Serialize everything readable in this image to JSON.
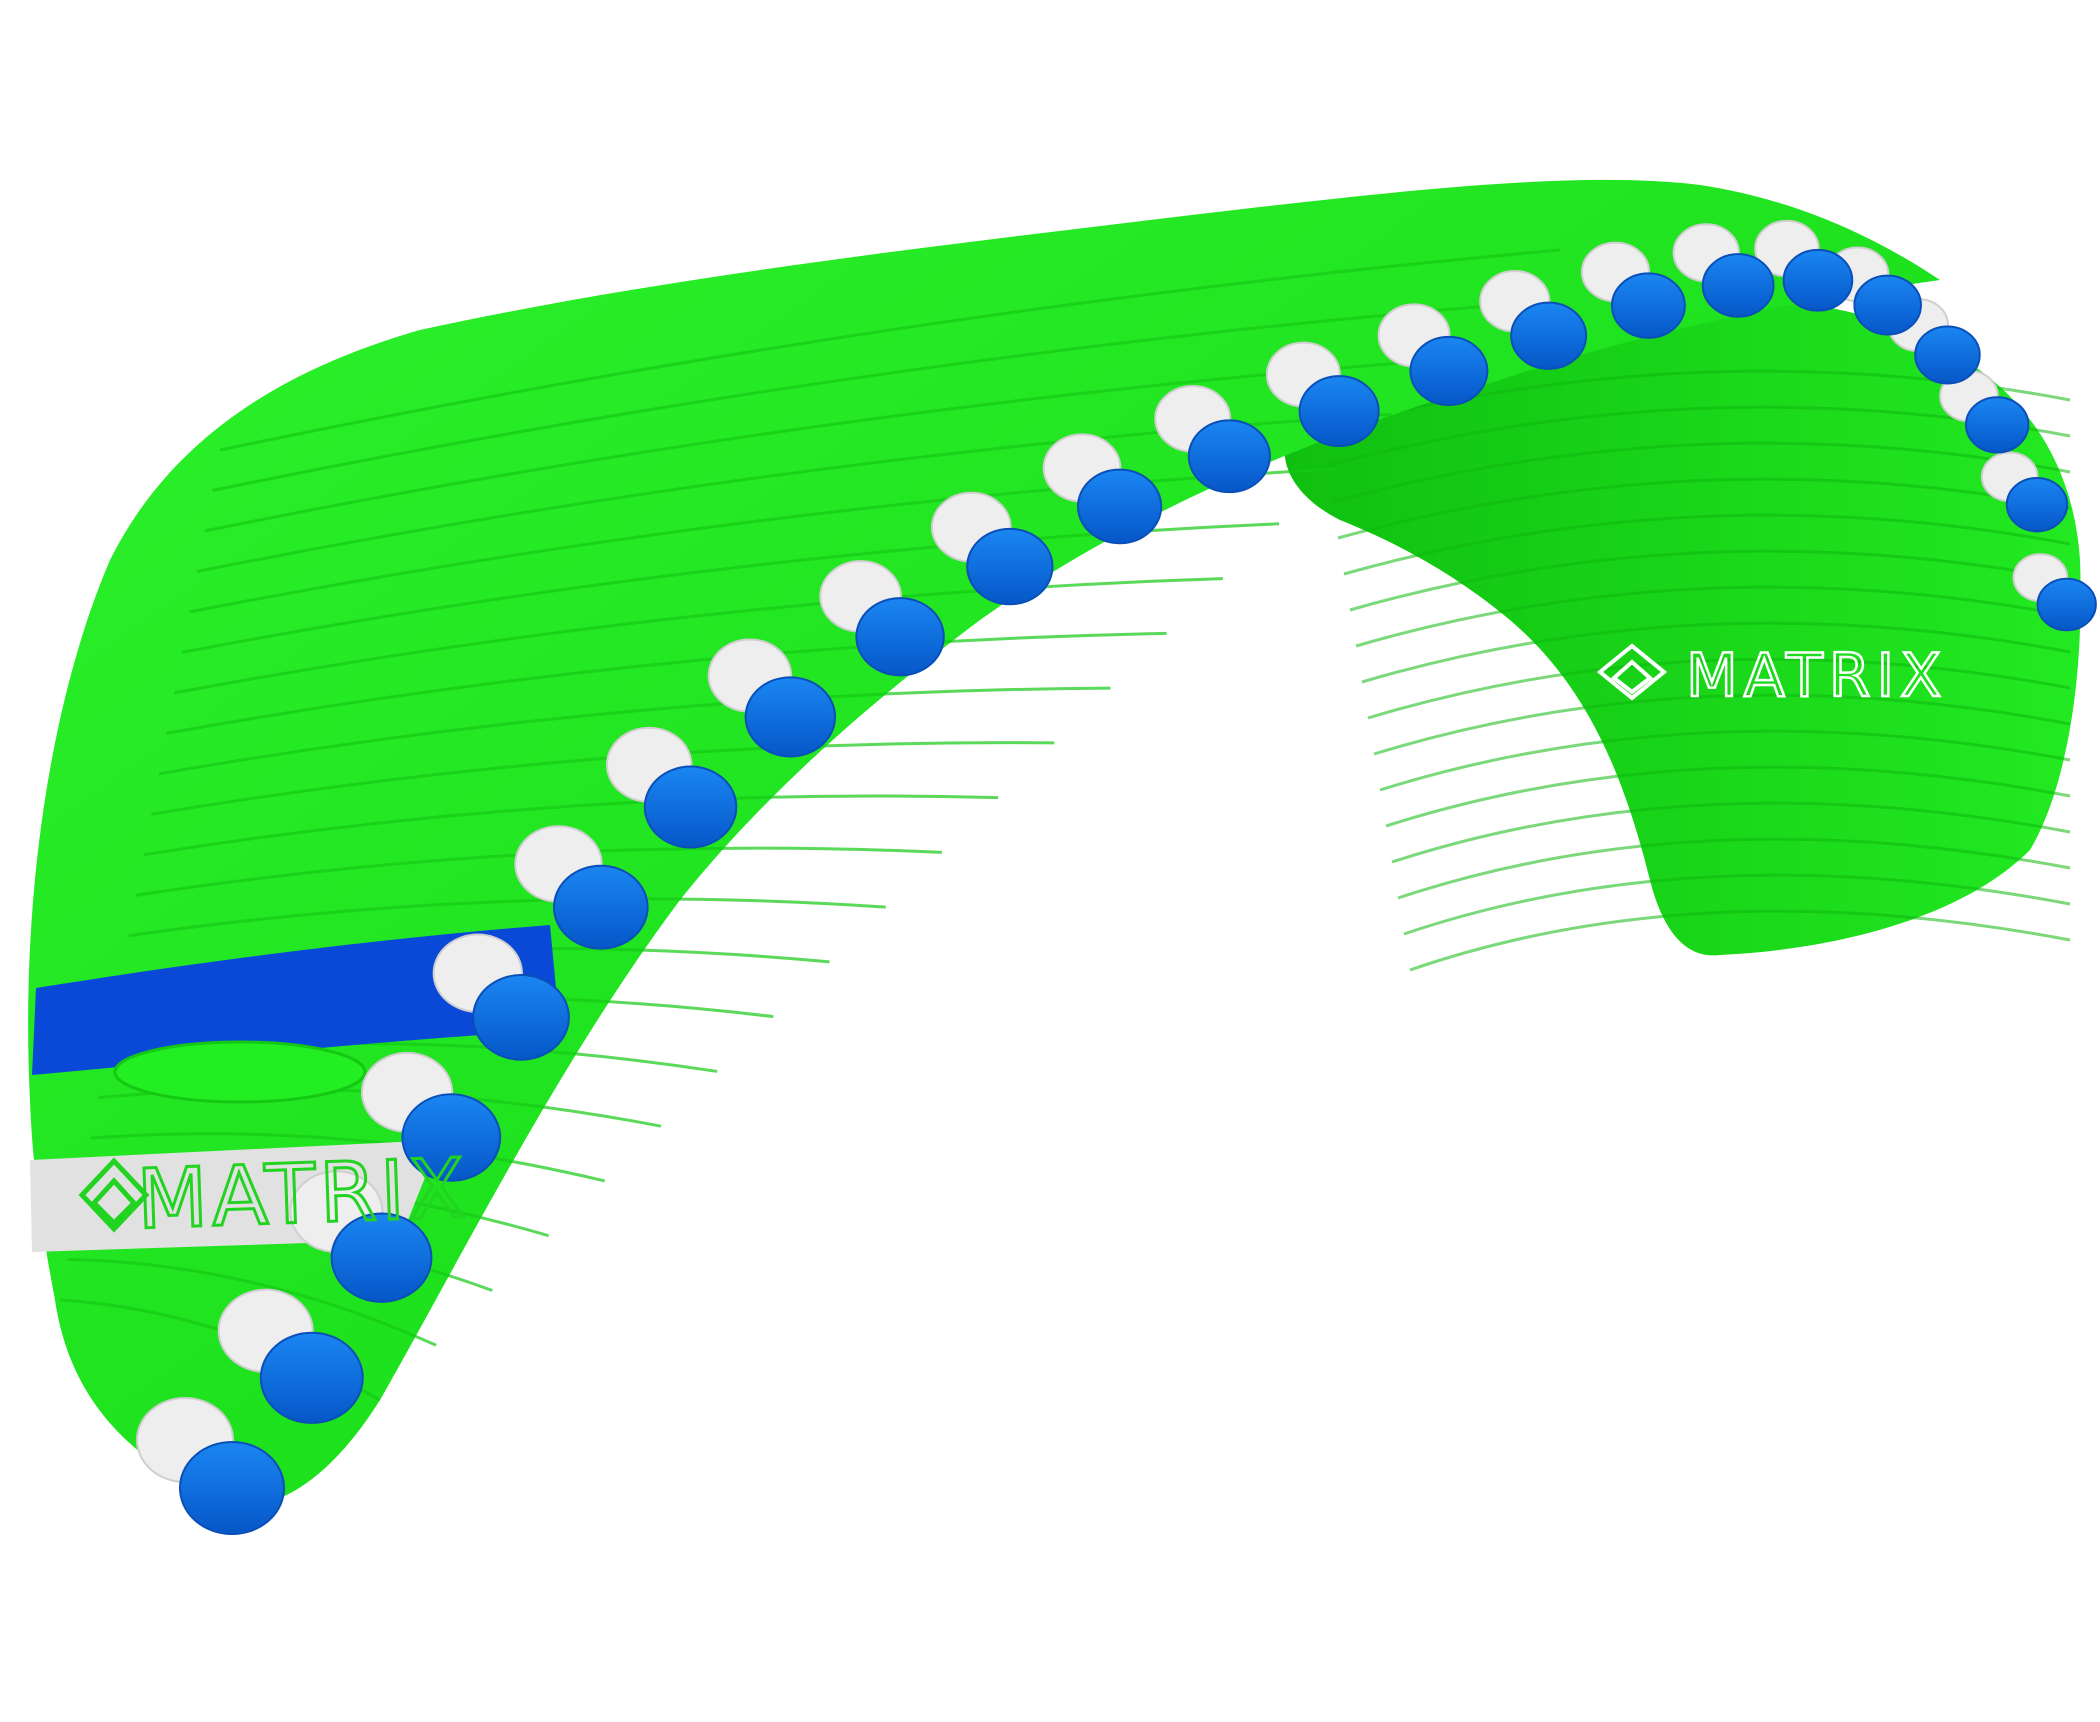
{
  "image": {
    "subject": "paraglider-wing",
    "colors": {
      "background": "#ffffff",
      "canopy_green": "#1fe81f",
      "canopy_green_dark": "#10c010",
      "leading_edge_blue": "#0a6fe6",
      "stripe_blue": "#0a49d8",
      "leading_edge_white": "#eeeeee",
      "logo_band_grey": "#e0e0e0"
    }
  },
  "logos": {
    "left_panel": {
      "text": "MATRIX",
      "icon": "diamond-logo-icon"
    },
    "right_underside": {
      "text": "MATRIX",
      "icon": "diamond-logo-icon"
    }
  }
}
